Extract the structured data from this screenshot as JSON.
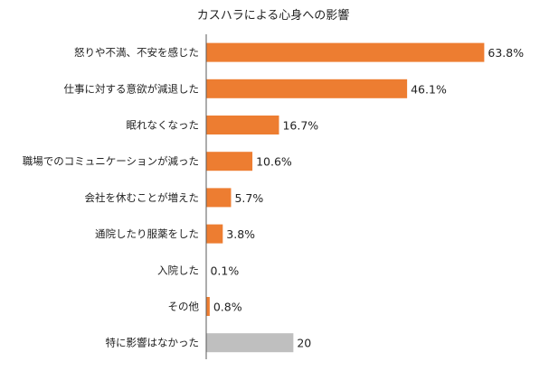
{
  "chart_data": {
    "type": "bar",
    "orientation": "horizontal",
    "title": "カスハラによる心身への影響",
    "xlabel": "",
    "ylabel": "",
    "xlim": [
      0,
      66
    ],
    "grid": false,
    "legend": false,
    "categories": [
      "怒りや不満、不安を感じた",
      "仕事に対する意欲が減退した",
      "眠れなくなった",
      "職場でのコミュニケーションが減った",
      "会社を休むことが増えた",
      "通院したり服薬をした",
      "入院した",
      "その他",
      "特に影響はなかった"
    ],
    "values": [
      63.8,
      46.1,
      16.7,
      10.6,
      5.7,
      3.8,
      0.1,
      0.8,
      20
    ],
    "value_labels": [
      "63.8%",
      "46.1%",
      "16.7%",
      "10.6%",
      "5.7%",
      "3.8%",
      "0.1%",
      "0.8%",
      "20"
    ],
    "colors": [
      "#ED7D31",
      "#ED7D31",
      "#ED7D31",
      "#ED7D31",
      "#ED7D31",
      "#ED7D31",
      "#ED7D31",
      "#ED7D31",
      "#BFBFBF"
    ]
  }
}
